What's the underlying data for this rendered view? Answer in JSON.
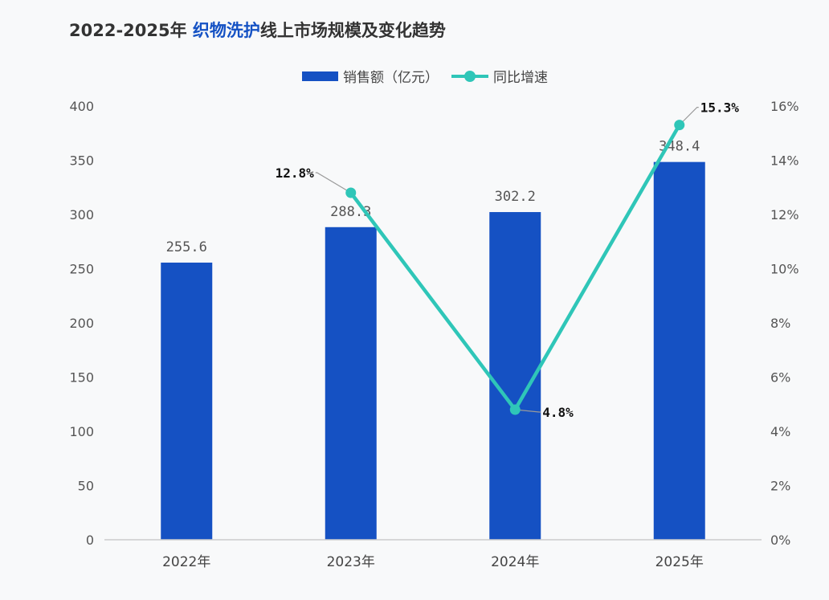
{
  "title": {
    "prefix": "2022-2025年 ",
    "highlight": "织物洗护",
    "suffix": "线上市场规模及变化趋势"
  },
  "colors": {
    "bar": "#1551c3",
    "line": "#2fc6b8",
    "title_highlight": "#1552c4",
    "axis_text": "#555555",
    "axis_line": "#cccccc"
  },
  "legend": {
    "bar_label": "销售额（亿元）",
    "line_label": "同比增速"
  },
  "chart_data": {
    "type": "bar",
    "categories": [
      "2022年",
      "2023年",
      "2024年",
      "2025年"
    ],
    "series": [
      {
        "name": "销售额（亿元）",
        "type": "bar",
        "axis": "left",
        "values": [
          255.6,
          288.3,
          302.2,
          348.4
        ],
        "labels": [
          "255.6",
          "288.3",
          "302.2",
          "348.4"
        ]
      },
      {
        "name": "同比增速",
        "type": "line",
        "axis": "right",
        "values": [
          null,
          12.8,
          4.8,
          15.3
        ],
        "labels": [
          "",
          "12.8%",
          "4.8%",
          "15.3%"
        ]
      }
    ],
    "y_left": {
      "lim": [
        0,
        400
      ],
      "ticks": [
        "0",
        "50",
        "100",
        "150",
        "200",
        "250",
        "300",
        "350",
        "400"
      ]
    },
    "y_right": {
      "lim": [
        0,
        16
      ],
      "ticks": [
        "0%",
        "2%",
        "4%",
        "6%",
        "8%",
        "10%",
        "12%",
        "14%",
        "16%"
      ]
    },
    "grid": false,
    "legend_position": "top"
  }
}
